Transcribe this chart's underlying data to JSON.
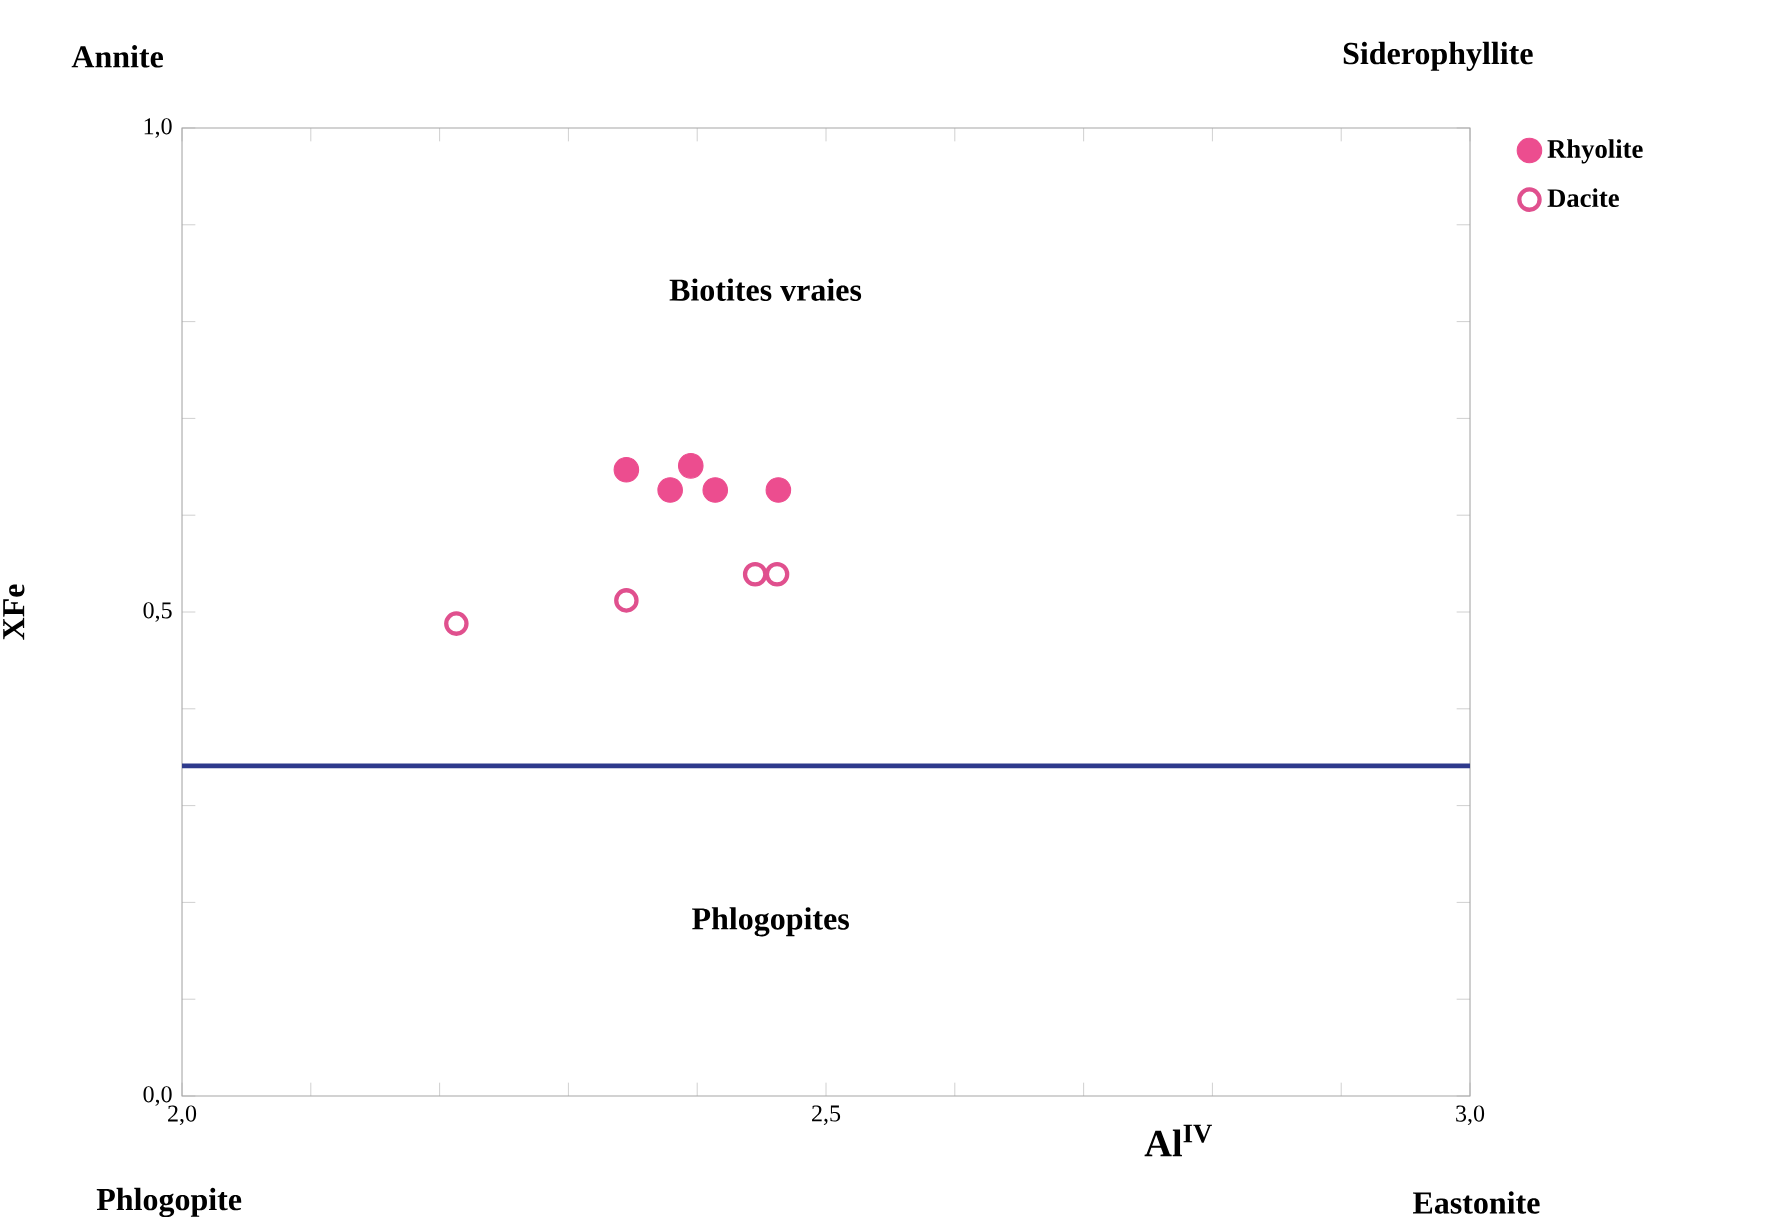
{
  "chart_data": {
    "type": "scatter",
    "xlabel": "Al$^{IV}$",
    "ylabel": "XFe",
    "annotations": [
      "Annite",
      "Siderophyllite",
      "Phlogopite",
      "Eastonite",
      "Biotites vraies",
      "Phlogopites"
    ],
    "series": [
      {
        "name": "Rhyolite",
        "color": "#ec4d8f",
        "marker": "circle",
        "x": [
          2.345,
          2.379,
          2.395,
          2.414,
          2.463
        ],
        "values": [
          0.647,
          0.626,
          0.651,
          0.626,
          0.626
        ]
      },
      {
        "name": "Dacite",
        "color": "#e0508e",
        "marker": "open circle",
        "x": [
          2.213,
          2.345,
          2.445,
          2.462
        ],
        "values": [
          0.488,
          0.512,
          0.539,
          0.539
        ]
      }
    ],
    "ref_lines": [
      {
        "axis": "y",
        "value": 0.341,
        "color": "#2e3a8c"
      }
    ],
    "xlim": [
      2.0,
      3.0
    ],
    "ylim": [
      0.0,
      1.0
    ],
    "xticks": [
      {
        "value": 2.0,
        "label": "2,0"
      },
      {
        "value": 2.1,
        "label": null
      },
      {
        "value": 2.2,
        "label": null
      },
      {
        "value": 2.3,
        "label": null
      },
      {
        "value": 2.4,
        "label": null
      },
      {
        "value": 2.5,
        "label": "2,5"
      },
      {
        "value": 2.6,
        "label": null
      },
      {
        "value": 2.7,
        "label": null
      },
      {
        "value": 2.8,
        "label": null
      },
      {
        "value": 2.9,
        "label": null
      },
      {
        "value": 3.0,
        "label": "3,0"
      }
    ],
    "yticks": [
      {
        "value": 0.0,
        "label": "0,0"
      },
      {
        "value": 0.1,
        "label": null
      },
      {
        "value": 0.2,
        "label": null
      },
      {
        "value": 0.3,
        "label": null
      },
      {
        "value": 0.4,
        "label": null
      },
      {
        "value": 0.5,
        "label": "0,5"
      },
      {
        "value": 0.6,
        "label": null
      },
      {
        "value": 0.7,
        "label": null
      },
      {
        "value": 0.8,
        "label": null
      },
      {
        "value": 0.9,
        "label": null
      },
      {
        "value": 1.0,
        "label": "1,0"
      }
    ],
    "grid": false,
    "legend": "top right"
  }
}
